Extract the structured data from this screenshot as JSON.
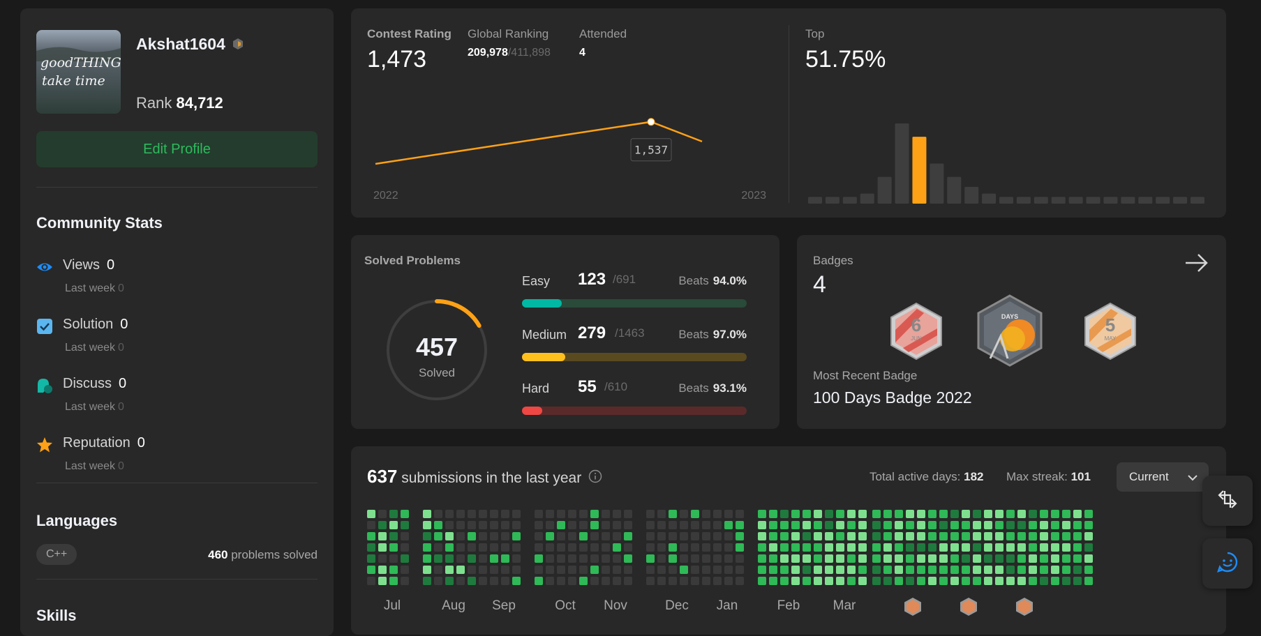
{
  "profile": {
    "username": "Akshat1604",
    "rank_label": "Rank",
    "rank_value": "84,712",
    "edit_label": "Edit Profile",
    "avatar_text_1": "goodTHINGS",
    "avatar_text_2": "take time"
  },
  "community": {
    "title": "Community Stats",
    "items": [
      {
        "label": "Views",
        "value": "0",
        "sub": "Last week",
        "sub_value": "0",
        "icon": "eye-icon"
      },
      {
        "label": "Solution",
        "value": "0",
        "sub": "Last week",
        "sub_value": "0",
        "icon": "checkbox-icon"
      },
      {
        "label": "Discuss",
        "value": "0",
        "sub": "Last week",
        "sub_value": "0",
        "icon": "discuss-icon"
      },
      {
        "label": "Reputation",
        "value": "0",
        "sub": "Last week",
        "sub_value": "0",
        "icon": "star-icon"
      }
    ]
  },
  "languages": {
    "title": "Languages",
    "lang": "C++",
    "count": "460",
    "count_suffix": "problems solved"
  },
  "skills": {
    "title": "Skills"
  },
  "contest": {
    "rating_label": "Contest Rating",
    "rating": "1,473",
    "global_label": "Global Ranking",
    "global_rank": "209,978",
    "global_total": "/411,898",
    "attended_label": "Attended",
    "attended": "4",
    "top_label": "Top",
    "top_value": "51.75%",
    "tooltip": "1,537",
    "year_start": "2022",
    "year_end": "2023"
  },
  "chart_data": [
    {
      "type": "line",
      "x": [
        "2022",
        "",
        "2023"
      ],
      "values": [
        1400,
        1537,
        1473
      ],
      "xlabel": "",
      "ylabel": ""
    },
    {
      "type": "bar",
      "values": [
        1,
        1,
        1,
        1.5,
        4,
        12,
        10,
        6,
        4,
        2.5,
        1.5,
        1,
        1,
        1,
        1,
        1,
        1,
        1,
        1,
        1,
        1,
        1,
        1
      ],
      "highlight_index": 6
    }
  ],
  "solved": {
    "title": "Solved Problems",
    "total": "457",
    "total_label": "Solved",
    "rows": [
      {
        "name": "Easy",
        "solved": "123",
        "total": "/691",
        "beats_label": "Beats",
        "beats": "94.0%",
        "ratio": 0.178,
        "fg": "#00b8a3",
        "bg": "#2a4a3a"
      },
      {
        "name": "Medium",
        "solved": "279",
        "total": "/1463",
        "beats_label": "Beats",
        "beats": "97.0%",
        "ratio": 0.191,
        "fg": "#ffc01e",
        "bg": "#5a4a20"
      },
      {
        "name": "Hard",
        "solved": "55",
        "total": "/610",
        "beats_label": "Beats",
        "beats": "93.1%",
        "ratio": 0.09,
        "fg": "#ef4743",
        "bg": "#5a2a2a"
      }
    ]
  },
  "badges": {
    "title": "Badges",
    "count": "4",
    "recent_label": "Most Recent Badge",
    "recent_name": "100 Days Badge 2022",
    "badge1_text": "6",
    "badge1_sub": "JUN",
    "badge2_text": "DAYS",
    "badge3_text": "5",
    "badge3_sub": "MAY"
  },
  "submissions": {
    "count": "637",
    "suffix": "submissions in the last year",
    "active_label": "Total active days:",
    "active": "182",
    "streak_label": "Max streak:",
    "streak": "101",
    "dropdown": "Current",
    "months": [
      "Jul",
      "Aug",
      "Sep",
      "Oct",
      "Nov",
      "Dec",
      "Jan",
      "Feb",
      "Mar"
    ]
  },
  "colors": {
    "accent": "#ffa116",
    "green": "#2cbb5d"
  }
}
